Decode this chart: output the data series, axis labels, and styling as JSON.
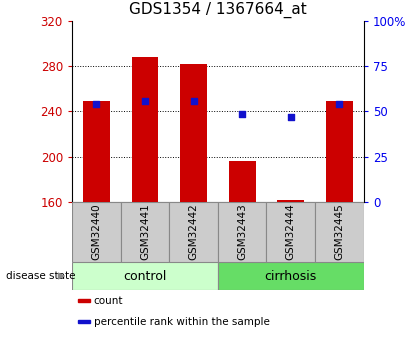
{
  "title": "GDS1354 / 1367664_at",
  "categories": [
    "GSM32440",
    "GSM32441",
    "GSM32442",
    "GSM32443",
    "GSM32444",
    "GSM32445"
  ],
  "bar_values": [
    249,
    288,
    282,
    196,
    162,
    249
  ],
  "bar_baseline": 160,
  "percentile_values": [
    246,
    249,
    249,
    238,
    235,
    246
  ],
  "ylim_left": [
    160,
    320
  ],
  "ylim_right": [
    0,
    100
  ],
  "yticks_left": [
    160,
    200,
    240,
    280,
    320
  ],
  "yticks_right": [
    0,
    25,
    50,
    75,
    100
  ],
  "ytick_labels_right": [
    "0",
    "25",
    "50",
    "75",
    "100%"
  ],
  "bar_color": "#cc0000",
  "percentile_color": "#1111cc",
  "grid_color": "#000000",
  "groups": [
    {
      "label": "control",
      "start": 0,
      "end": 3,
      "color": "#ccffcc"
    },
    {
      "label": "cirrhosis",
      "start": 3,
      "end": 6,
      "color": "#66dd66"
    }
  ],
  "disease_state_label": "disease state",
  "legend_items": [
    {
      "label": "count",
      "color": "#cc0000"
    },
    {
      "label": "percentile rank within the sample",
      "color": "#1111cc"
    }
  ],
  "bar_color_left": "#cc0000",
  "ylabel_right_color": "#0000ee",
  "bar_width": 0.55,
  "title_fontsize": 11,
  "tick_fontsize": 8.5,
  "label_fontsize": 8,
  "sample_box_color": "#cccccc",
  "sample_box_edge": "#888888"
}
